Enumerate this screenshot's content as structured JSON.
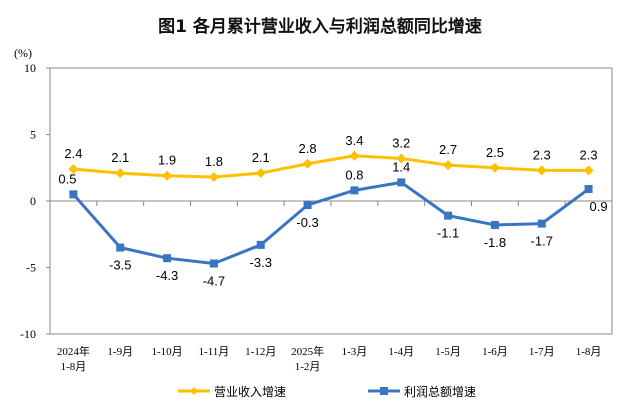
{
  "chart_data": {
    "type": "line",
    "title": "图1  各月累计营业收入与利润总额同比增速",
    "ylabel": "(%)",
    "ylim": [
      -10,
      10
    ],
    "yticks": [
      10,
      5,
      0,
      -5,
      -10
    ],
    "grid": false,
    "legend_placement": "bottom",
    "categories": [
      [
        "2024年",
        "1-8月"
      ],
      [
        "1-9月"
      ],
      [
        "1-10月"
      ],
      [
        "1-11月"
      ],
      [
        "1-12月"
      ],
      [
        "2025年",
        "1-2月"
      ],
      [
        "1-3月"
      ],
      [
        "1-4月"
      ],
      [
        "1-5月"
      ],
      [
        "1-6月"
      ],
      [
        "1-7月"
      ],
      [
        "1-8月"
      ]
    ],
    "series": [
      {
        "name": "营业收入增速",
        "color": "#FFC000",
        "marker": "diamond",
        "values": [
          2.4,
          2.1,
          1.9,
          1.8,
          2.1,
          2.8,
          3.4,
          3.2,
          2.7,
          2.5,
          2.3,
          2.3
        ]
      },
      {
        "name": "利润总额增速",
        "color": "#3A75C4",
        "marker": "square",
        "values": [
          0.5,
          -3.5,
          -4.3,
          -4.7,
          -3.3,
          -0.3,
          0.8,
          1.4,
          -1.1,
          -1.8,
          -1.7,
          0.9
        ]
      }
    ]
  }
}
